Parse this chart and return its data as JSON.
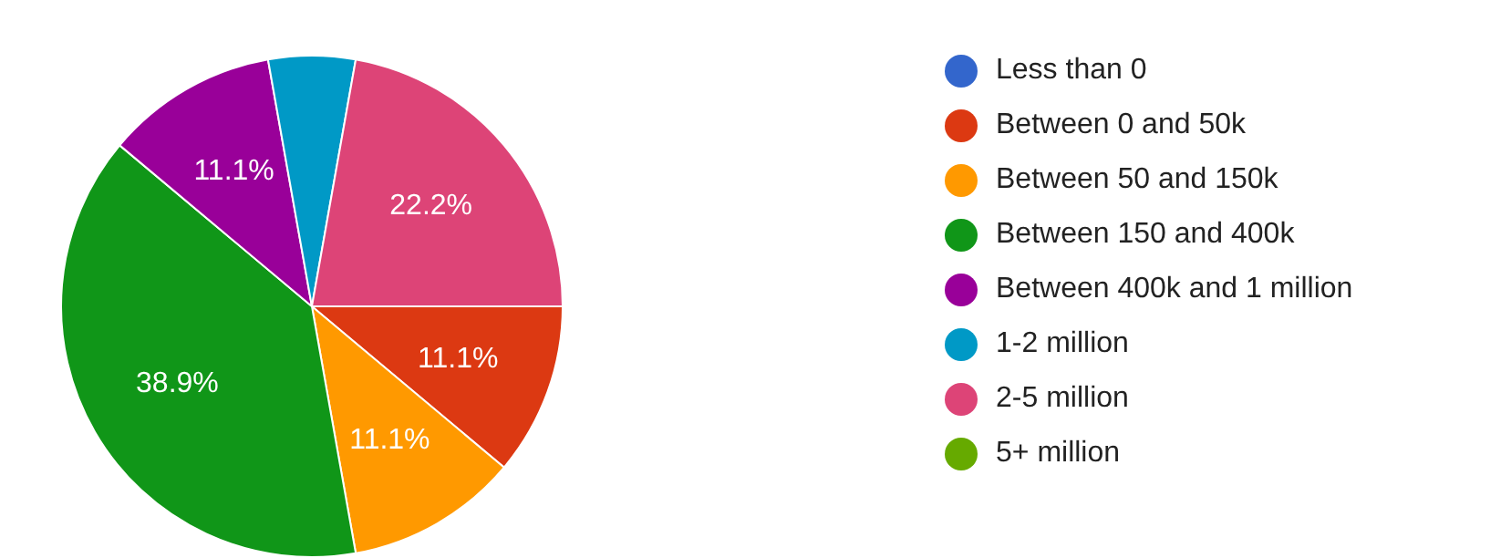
{
  "chart_data": {
    "type": "pie",
    "categories": [
      "Less than 0",
      "Between 0 and 50k",
      "Between 50 and 150k",
      "Between 150 and 400k",
      "Between 400k and 1 million",
      "1-2 million",
      "2-5 million",
      "5+ million"
    ],
    "values": [
      0,
      11.1,
      11.1,
      38.9,
      11.1,
      5.6,
      22.2,
      0
    ],
    "colors": [
      "#3366cc",
      "#dc3912",
      "#ff9900",
      "#109618",
      "#990099",
      "#0099c6",
      "#dd4477",
      "#66aa00"
    ],
    "value_labels": [
      null,
      "11.1%",
      "11.1%",
      "38.9%",
      "11.1%",
      null,
      "22.2%",
      null
    ],
    "legend": "right"
  }
}
